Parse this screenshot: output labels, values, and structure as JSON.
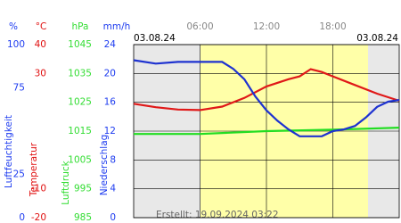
{
  "chart_data": {
    "type": "line",
    "date_left": "03.08.24",
    "date_right": "03.08.24",
    "footer": "Erstellt: 19.09.2024 03:22",
    "xlim": [
      0,
      24
    ],
    "xticks": [
      {
        "value": 6,
        "label": "06:00"
      },
      {
        "value": 12,
        "label": "12:00"
      },
      {
        "value": 18,
        "label": "18:00"
      }
    ],
    "grid": true,
    "axes": [
      {
        "unit": "%",
        "title": "Luftfeuchtigkeit",
        "color": "#1e3cf0",
        "ylim": [
          0,
          100
        ],
        "yticks": [
          100,
          75,
          25,
          0
        ]
      },
      {
        "unit": "°C",
        "title": "Temperatur",
        "color": "#e01010",
        "ylim": [
          -20,
          40
        ],
        "yticks": [
          40,
          30,
          -10,
          -20
        ]
      },
      {
        "unit": "hPa",
        "title": "Luftdruck",
        "color": "#33dd33",
        "ylim": [
          985,
          1045
        ],
        "yticks": [
          1045,
          1035,
          1025,
          1015,
          1005,
          995,
          985
        ]
      },
      {
        "unit": "mm/h",
        "title": "Niederschlag",
        "color": "#1e3cf0",
        "ylim": [
          0,
          24
        ],
        "yticks": [
          24,
          20,
          16,
          12,
          8,
          4,
          0
        ]
      }
    ],
    "series": [
      {
        "name": "Luftdruck",
        "axis": 2,
        "color": "#22dd22",
        "x": [
          0,
          6,
          12,
          18,
          24
        ],
        "values": [
          1014,
          1014,
          1015,
          1015.5,
          1016.2
        ]
      },
      {
        "name": "Temperatur",
        "axis": 1,
        "color": "#e01818",
        "x": [
          0,
          2,
          4,
          6,
          8,
          10,
          12,
          14,
          15,
          16,
          17,
          18,
          20,
          22,
          24
        ],
        "values": [
          19.5,
          18.3,
          17.5,
          17.3,
          18.5,
          21.5,
          25.5,
          28,
          29,
          31.5,
          30.5,
          29,
          26,
          23,
          20.5
        ]
      },
      {
        "name": "Luftfeuchtigkeit",
        "axis": 0,
        "color": "#1e32d0",
        "x": [
          0,
          2,
          4,
          6,
          8,
          9,
          10,
          11,
          12,
          13,
          14,
          15,
          16,
          17,
          18,
          19,
          20,
          21,
          22,
          23,
          24
        ],
        "values": [
          91,
          89,
          90,
          90,
          90,
          86,
          80,
          70,
          62,
          56,
          51,
          47,
          47,
          47,
          50,
          51,
          53,
          58,
          64,
          67,
          68
        ]
      }
    ]
  }
}
